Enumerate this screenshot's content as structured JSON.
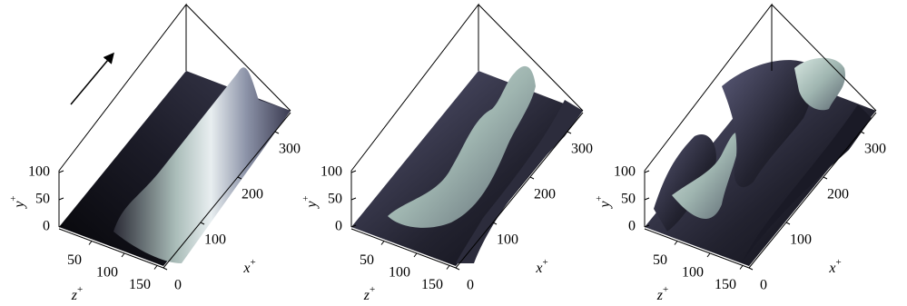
{
  "panels": [
    {
      "y_label": {
        "base": "y",
        "sup": "+"
      },
      "z_label": {
        "base": "z",
        "sup": "+"
      },
      "x_label": {
        "base": "x",
        "sup": "+"
      },
      "yticks": [
        0,
        50,
        100
      ],
      "zticks": [
        50,
        100,
        150
      ],
      "xticks": [
        0,
        100,
        200,
        300
      ]
    },
    {
      "y_label": {
        "base": "y",
        "sup": "+"
      },
      "z_label": {
        "base": "z",
        "sup": "+"
      },
      "x_label": {
        "base": "x",
        "sup": "+"
      },
      "yticks": [
        0,
        50,
        100
      ],
      "zticks": [
        50,
        100,
        150
      ],
      "xticks": [
        0,
        100,
        200,
        300
      ]
    },
    {
      "y_label": {
        "base": "y",
        "sup": "+"
      },
      "z_label": {
        "base": "z",
        "sup": "+"
      },
      "x_label": {
        "base": "x",
        "sup": "+"
      },
      "yticks": [
        0,
        50,
        100
      ],
      "zticks": [
        50,
        100,
        150
      ],
      "xticks": [
        0,
        100,
        200,
        300
      ]
    }
  ]
}
